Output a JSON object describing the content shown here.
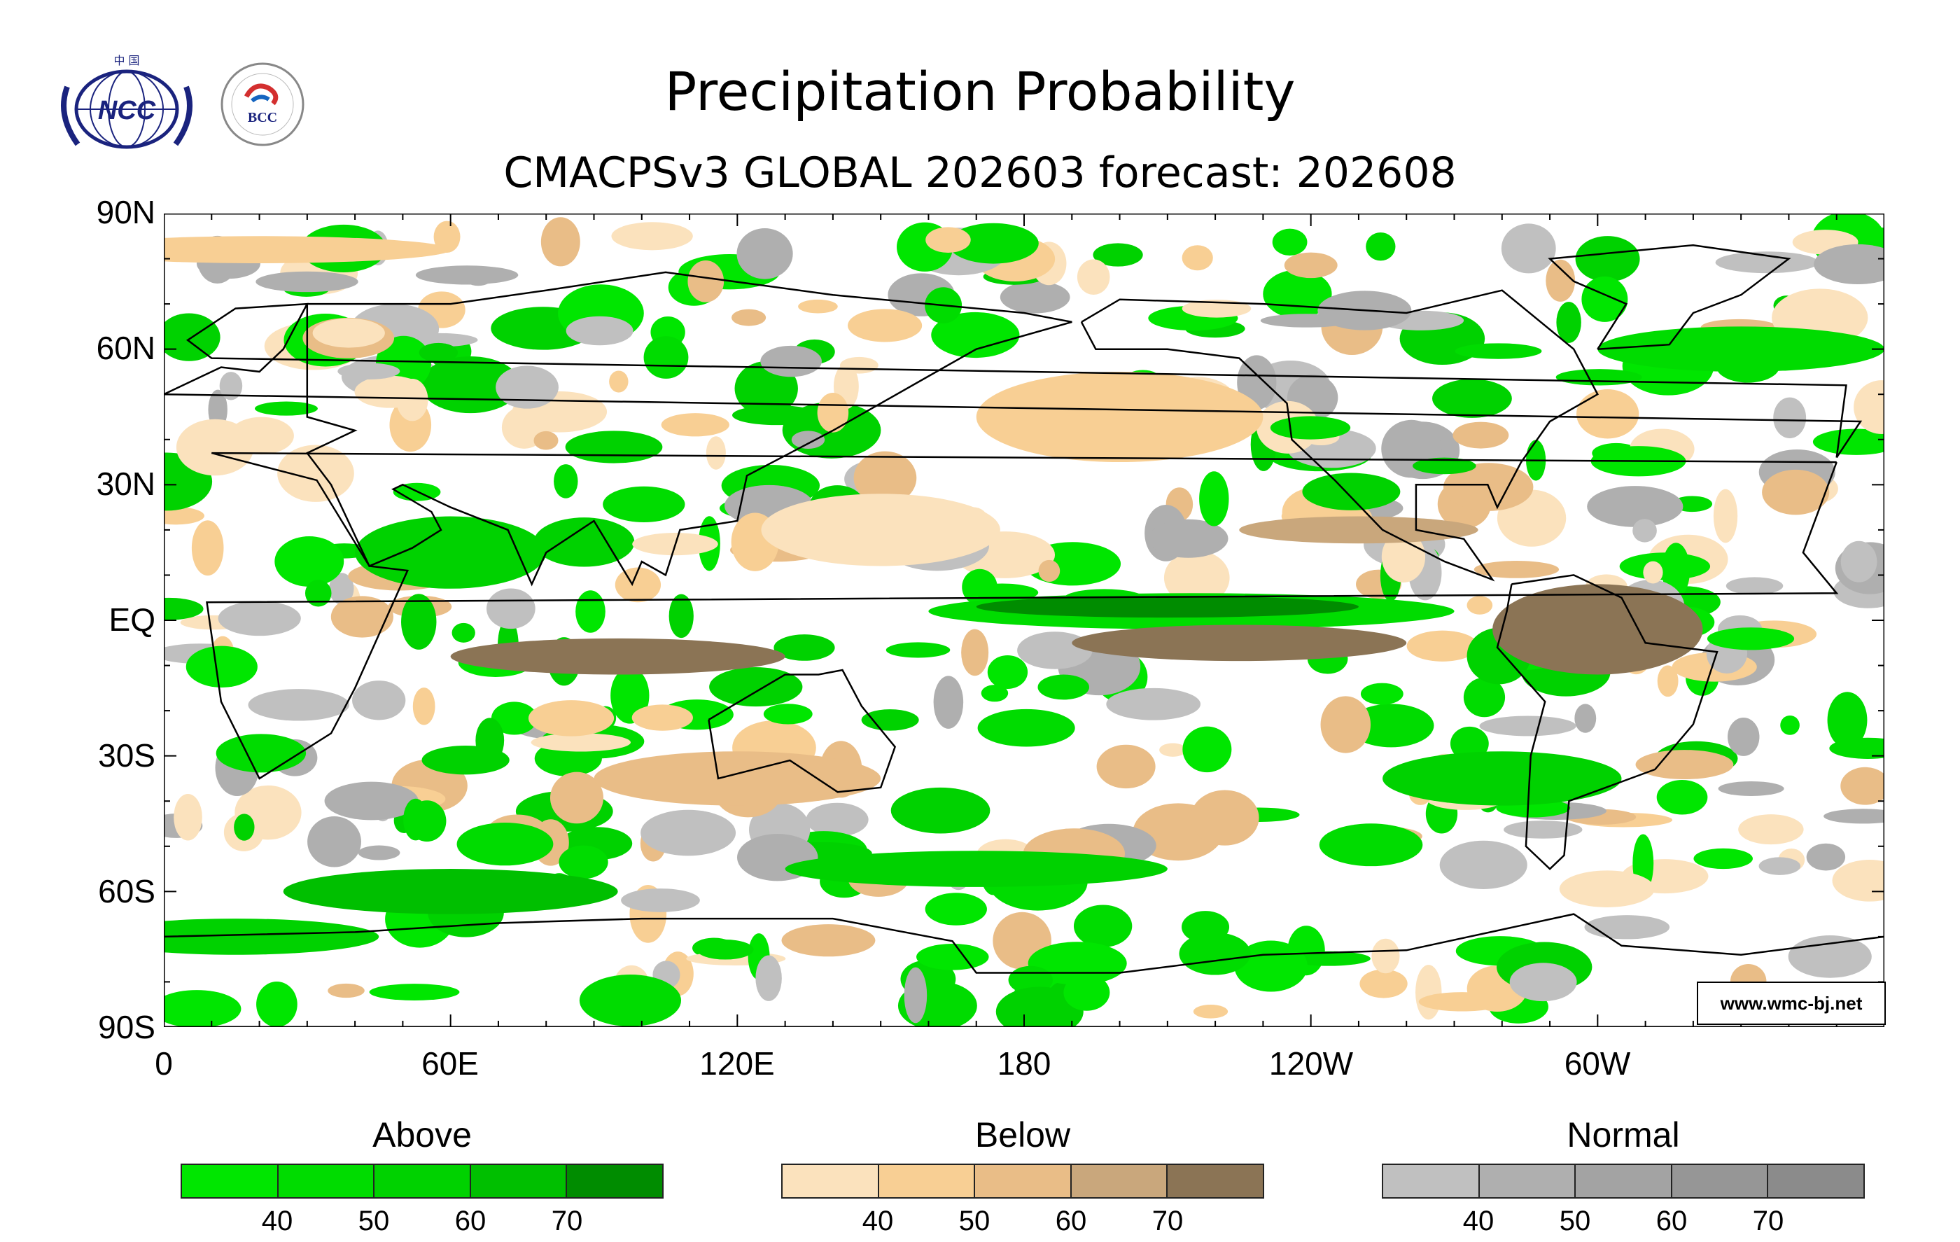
{
  "header": {
    "title": "Precipitation Probability",
    "subtitle": "CMACPSv3 GLOBAL 202603 forecast: 202608",
    "logo_left_text": "NCC",
    "logo_left_caption": "中 国",
    "logo_right_text": "BCC"
  },
  "map": {
    "latitude_labels": [
      "90N",
      "60N",
      "30N",
      "EQ",
      "30S",
      "60S",
      "90S"
    ],
    "longitude_labels": [
      "0",
      "60E",
      "120E",
      "180",
      "120W",
      "60W"
    ],
    "watermark": "www.wmc-bj.net",
    "ocean_color": "#ffffff",
    "coastline_color": "#000000"
  },
  "legends": [
    {
      "name": "Above",
      "title": "Above",
      "ticks": [
        "40",
        "50",
        "60",
        "70"
      ],
      "colors": [
        "#00e600",
        "#00dc00",
        "#00d200",
        "#00bf00",
        "#008c00"
      ]
    },
    {
      "name": "Below",
      "title": "Below",
      "ticks": [
        "40",
        "50",
        "60",
        "70"
      ],
      "colors": [
        "#fbe2bd",
        "#f8cf94",
        "#e9bd87",
        "#c9a77c",
        "#8b7455"
      ]
    },
    {
      "name": "Normal",
      "title": "Normal",
      "ticks": [
        "40",
        "50",
        "60",
        "70"
      ],
      "colors": [
        "#c0c0c0",
        "#afafaf",
        "#a3a3a3",
        "#969696",
        "#8b8b8b"
      ]
    }
  ]
}
